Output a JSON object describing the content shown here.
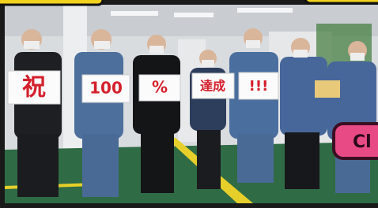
{
  "signs": [
    "祝",
    "100",
    "%",
    "達成",
    "!!!"
  ],
  "badge": "Cl"
}
